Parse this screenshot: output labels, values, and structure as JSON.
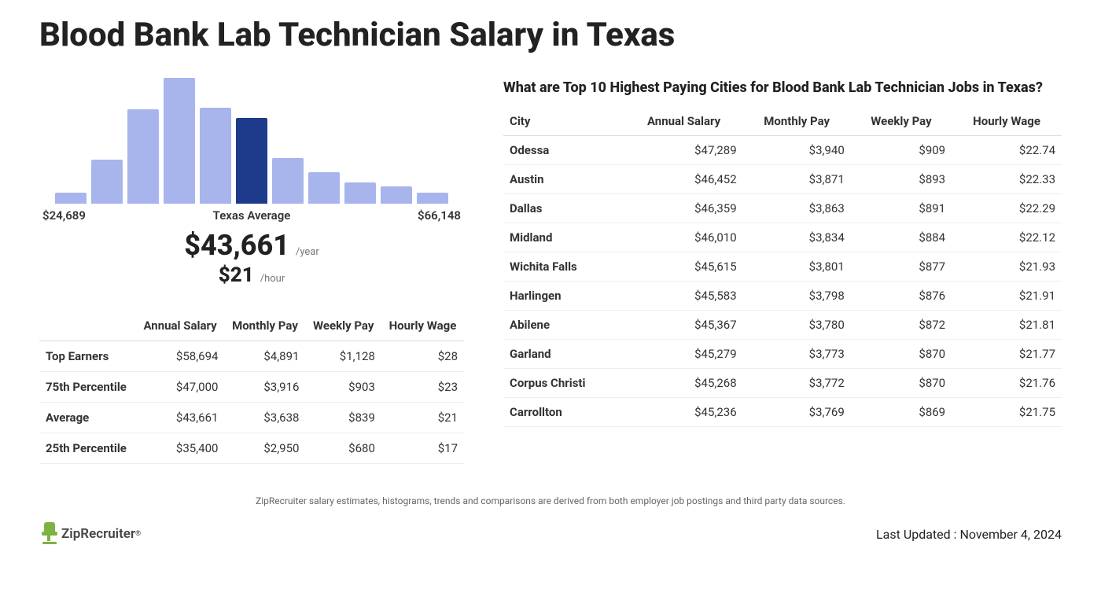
{
  "page": {
    "title": "Blood Bank Lab Technician Salary in Texas"
  },
  "histogram": {
    "type": "histogram",
    "bar_color": "#a7b5ec",
    "highlight_color": "#1e3a8a",
    "background_color": "#ffffff",
    "bars": [
      {
        "height_pct": 9,
        "highlighted": false
      },
      {
        "height_pct": 35,
        "highlighted": false
      },
      {
        "height_pct": 75,
        "highlighted": false
      },
      {
        "height_pct": 100,
        "highlighted": false
      },
      {
        "height_pct": 76,
        "highlighted": false
      },
      {
        "height_pct": 68,
        "highlighted": true
      },
      {
        "height_pct": 36,
        "highlighted": false
      },
      {
        "height_pct": 25,
        "highlighted": false
      },
      {
        "height_pct": 17,
        "highlighted": false
      },
      {
        "height_pct": 14,
        "highlighted": false
      },
      {
        "height_pct": 9,
        "highlighted": false
      }
    ],
    "axis": {
      "min_label": "$24,689",
      "center_label": "Texas Average",
      "max_label": "$66,148"
    },
    "summary": {
      "annual": "$43,661",
      "annual_suffix": "/year",
      "hourly": "$21",
      "hourly_suffix": "/hour"
    }
  },
  "percentile_table": {
    "columns": [
      "",
      "Annual Salary",
      "Monthly Pay",
      "Weekly Pay",
      "Hourly Wage"
    ],
    "rows": [
      {
        "label": "Top Earners",
        "annual": "$58,694",
        "monthly": "$4,891",
        "weekly": "$1,128",
        "hourly": "$28"
      },
      {
        "label": "75th Percentile",
        "annual": "$47,000",
        "monthly": "$3,916",
        "weekly": "$903",
        "hourly": "$23"
      },
      {
        "label": "Average",
        "annual": "$43,661",
        "monthly": "$3,638",
        "weekly": "$839",
        "hourly": "$21"
      },
      {
        "label": "25th Percentile",
        "annual": "$35,400",
        "monthly": "$2,950",
        "weekly": "$680",
        "hourly": "$17"
      }
    ]
  },
  "cities": {
    "title": "What are Top 10 Highest Paying Cities for Blood Bank Lab Technician Jobs in Texas?",
    "columns": [
      "City",
      "Annual Salary",
      "Monthly Pay",
      "Weekly Pay",
      "Hourly Wage"
    ],
    "rows": [
      {
        "city": "Odessa",
        "annual": "$47,289",
        "monthly": "$3,940",
        "weekly": "$909",
        "hourly": "$22.74"
      },
      {
        "city": "Austin",
        "annual": "$46,452",
        "monthly": "$3,871",
        "weekly": "$893",
        "hourly": "$22.33"
      },
      {
        "city": "Dallas",
        "annual": "$46,359",
        "monthly": "$3,863",
        "weekly": "$891",
        "hourly": "$22.29"
      },
      {
        "city": "Midland",
        "annual": "$46,010",
        "monthly": "$3,834",
        "weekly": "$884",
        "hourly": "$22.12"
      },
      {
        "city": "Wichita Falls",
        "annual": "$45,615",
        "monthly": "$3,801",
        "weekly": "$877",
        "hourly": "$21.93"
      },
      {
        "city": "Harlingen",
        "annual": "$45,583",
        "monthly": "$3,798",
        "weekly": "$876",
        "hourly": "$21.91"
      },
      {
        "city": "Abilene",
        "annual": "$45,367",
        "monthly": "$3,780",
        "weekly": "$872",
        "hourly": "$21.81"
      },
      {
        "city": "Garland",
        "annual": "$45,279",
        "monthly": "$3,773",
        "weekly": "$870",
        "hourly": "$21.77"
      },
      {
        "city": "Corpus Christi",
        "annual": "$45,268",
        "monthly": "$3,772",
        "weekly": "$870",
        "hourly": "$21.76"
      },
      {
        "city": "Carrollton",
        "annual": "$45,236",
        "monthly": "$3,769",
        "weekly": "$869",
        "hourly": "$21.75"
      }
    ]
  },
  "footer": {
    "disclaimer": "ZipRecruiter salary estimates, histograms, trends and comparisons are derived from both employer job postings and third party data sources.",
    "brand": "ZipRecruiter",
    "last_updated_label": "Last Updated :",
    "last_updated_value": "November 4, 2024"
  },
  "colors": {
    "text_primary": "#222222",
    "text_secondary": "#666666",
    "brand_accent": "#7cb342",
    "table_border": "#eeeeee"
  }
}
